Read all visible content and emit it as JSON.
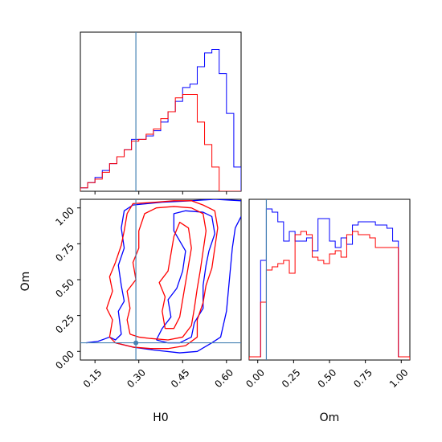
{
  "chart_data": {
    "type": "corner",
    "parameters": [
      "H0",
      "Om"
    ],
    "truths": {
      "H0": 0.29,
      "Om": 0.06
    },
    "colors": {
      "series_a": "#0000ff",
      "series_b": "#ff0000",
      "truth": "#4682b4"
    },
    "axes": {
      "H0": {
        "range": [
          0.1,
          0.65
        ],
        "ticks": [
          "0.15",
          "0.30",
          "0.45",
          "0.60"
        ],
        "tick_values": [
          0.15,
          0.3,
          0.45,
          0.6
        ]
      },
      "Om": {
        "range": [
          -0.06,
          1.06
        ],
        "ticks": [
          "0.00",
          "0.25",
          "0.50",
          "0.75",
          "1.00"
        ],
        "tick_values": [
          0.0,
          0.25,
          0.5,
          0.75,
          1.0
        ]
      }
    },
    "hist_H0": {
      "bin_edges": [
        0.1,
        0.125,
        0.15,
        0.175,
        0.2,
        0.225,
        0.25,
        0.275,
        0.3,
        0.325,
        0.35,
        0.375,
        0.4,
        0.425,
        0.45,
        0.475,
        0.5,
        0.525,
        0.55,
        0.575,
        0.6,
        0.625,
        0.65
      ],
      "series_a": [
        0.02,
        0.05,
        0.08,
        0.12,
        0.16,
        0.2,
        0.24,
        0.3,
        0.3,
        0.32,
        0.35,
        0.4,
        0.46,
        0.52,
        0.6,
        0.62,
        0.72,
        0.8,
        0.82,
        0.68,
        0.45,
        0.14
      ],
      "series_b": [
        0.02,
        0.05,
        0.07,
        0.11,
        0.16,
        0.2,
        0.24,
        0.29,
        0.3,
        0.33,
        0.36,
        0.42,
        0.46,
        0.54,
        0.56,
        0.56,
        0.4,
        0.27,
        0.14,
        0.0,
        0.0,
        0.0
      ],
      "ymax": 0.92
    },
    "hist_Om": {
      "bin_edges": [
        -0.06,
        -0.02,
        0.02,
        0.06,
        0.1,
        0.14,
        0.18,
        0.22,
        0.26,
        0.3,
        0.34,
        0.38,
        0.42,
        0.46,
        0.5,
        0.54,
        0.58,
        0.62,
        0.66,
        0.7,
        0.74,
        0.78,
        0.82,
        0.86,
        0.9,
        0.94,
        0.98,
        1.02,
        1.06
      ],
      "series_a": [
        0.02,
        0.02,
        0.62,
        0.94,
        0.92,
        0.86,
        0.74,
        0.8,
        0.74,
        0.74,
        0.76,
        0.68,
        0.88,
        0.88,
        0.74,
        0.7,
        0.76,
        0.72,
        0.84,
        0.86,
        0.86,
        0.86,
        0.84,
        0.84,
        0.82,
        0.74,
        0.02,
        0.02
      ],
      "series_b": [
        0.02,
        0.02,
        0.36,
        0.56,
        0.58,
        0.6,
        0.62,
        0.54,
        0.78,
        0.8,
        0.78,
        0.64,
        0.62,
        0.6,
        0.66,
        0.68,
        0.64,
        0.78,
        0.8,
        0.78,
        0.78,
        0.76,
        0.7,
        0.7,
        0.7,
        0.7,
        0.02,
        0.02
      ],
      "ymax": 1.0
    },
    "contours": {
      "series_a": [
        [
          [
            0.12,
            0.06
          ],
          [
            0.16,
            0.07
          ],
          [
            0.2,
            0.1
          ],
          [
            0.22,
            0.08
          ],
          [
            0.24,
            0.12
          ],
          [
            0.23,
            0.28
          ],
          [
            0.25,
            0.35
          ],
          [
            0.24,
            0.46
          ],
          [
            0.23,
            0.6
          ],
          [
            0.25,
            0.72
          ],
          [
            0.24,
            0.86
          ],
          [
            0.25,
            0.98
          ],
          [
            0.28,
            1.02
          ],
          [
            0.38,
            1.04
          ],
          [
            0.48,
            1.05
          ],
          [
            0.56,
            1.06
          ],
          [
            0.65,
            1.05
          ]
        ],
        [
          [
            0.22,
            0.06
          ],
          [
            0.24,
            0.05
          ],
          [
            0.28,
            0.03
          ],
          [
            0.35,
            0.01
          ],
          [
            0.44,
            -0.01
          ],
          [
            0.5,
            0.0
          ],
          [
            0.55,
            0.06
          ],
          [
            0.58,
            0.1
          ],
          [
            0.6,
            0.28
          ],
          [
            0.61,
            0.5
          ],
          [
            0.62,
            0.72
          ],
          [
            0.63,
            0.86
          ],
          [
            0.65,
            0.94
          ]
        ],
        [
          [
            0.36,
            0.08
          ],
          [
            0.4,
            0.06
          ],
          [
            0.44,
            0.06
          ],
          [
            0.48,
            0.1
          ],
          [
            0.49,
            0.2
          ],
          [
            0.52,
            0.3
          ],
          [
            0.52,
            0.46
          ],
          [
            0.53,
            0.6
          ],
          [
            0.54,
            0.7
          ],
          [
            0.56,
            0.82
          ],
          [
            0.55,
            0.94
          ],
          [
            0.52,
            0.97
          ],
          [
            0.46,
            0.98
          ],
          [
            0.42,
            0.96
          ],
          [
            0.42,
            0.84
          ],
          [
            0.46,
            0.7
          ],
          [
            0.45,
            0.56
          ],
          [
            0.43,
            0.44
          ],
          [
            0.4,
            0.36
          ],
          [
            0.41,
            0.24
          ],
          [
            0.38,
            0.16
          ],
          [
            0.36,
            0.08
          ]
        ]
      ],
      "series_b": [
        [
          [
            0.22,
            0.06
          ],
          [
            0.2,
            0.1
          ],
          [
            0.21,
            0.22
          ],
          [
            0.19,
            0.3
          ],
          [
            0.21,
            0.42
          ],
          [
            0.2,
            0.52
          ],
          [
            0.22,
            0.62
          ],
          [
            0.24,
            0.74
          ],
          [
            0.25,
            0.84
          ],
          [
            0.26,
            0.96
          ],
          [
            0.28,
            1.03
          ],
          [
            0.36,
            1.04
          ],
          [
            0.42,
            1.05
          ],
          [
            0.48,
            1.05
          ],
          [
            0.52,
            1.02
          ],
          [
            0.56,
            0.98
          ],
          [
            0.57,
            0.86
          ],
          [
            0.56,
            0.72
          ],
          [
            0.55,
            0.58
          ],
          [
            0.53,
            0.46
          ],
          [
            0.52,
            0.34
          ],
          [
            0.5,
            0.22
          ],
          [
            0.5,
            0.1
          ],
          [
            0.46,
            0.04
          ],
          [
            0.4,
            0.02
          ],
          [
            0.34,
            0.02
          ],
          [
            0.28,
            0.03
          ],
          [
            0.22,
            0.06
          ]
        ],
        [
          [
            0.27,
            0.12
          ],
          [
            0.26,
            0.22
          ],
          [
            0.27,
            0.3
          ],
          [
            0.26,
            0.42
          ],
          [
            0.29,
            0.5
          ],
          [
            0.28,
            0.62
          ],
          [
            0.3,
            0.72
          ],
          [
            0.3,
            0.84
          ],
          [
            0.32,
            0.96
          ],
          [
            0.36,
            1.0
          ],
          [
            0.42,
            1.01
          ],
          [
            0.48,
            1.0
          ],
          [
            0.52,
            0.96
          ],
          [
            0.53,
            0.84
          ],
          [
            0.52,
            0.7
          ],
          [
            0.51,
            0.56
          ],
          [
            0.5,
            0.44
          ],
          [
            0.49,
            0.3
          ],
          [
            0.48,
            0.18
          ],
          [
            0.45,
            0.1
          ],
          [
            0.4,
            0.08
          ],
          [
            0.34,
            0.09
          ],
          [
            0.3,
            0.1
          ],
          [
            0.27,
            0.12
          ]
        ],
        [
          [
            0.39,
            0.16
          ],
          [
            0.38,
            0.28
          ],
          [
            0.39,
            0.38
          ],
          [
            0.37,
            0.48
          ],
          [
            0.4,
            0.56
          ],
          [
            0.41,
            0.68
          ],
          [
            0.42,
            0.8
          ],
          [
            0.44,
            0.9
          ],
          [
            0.47,
            0.86
          ],
          [
            0.48,
            0.72
          ],
          [
            0.47,
            0.6
          ],
          [
            0.46,
            0.48
          ],
          [
            0.45,
            0.36
          ],
          [
            0.44,
            0.24
          ],
          [
            0.42,
            0.16
          ],
          [
            0.39,
            0.16
          ]
        ]
      ]
    },
    "labels": {
      "x_left": "H0",
      "x_right": "Om",
      "y_left": "Om"
    }
  }
}
